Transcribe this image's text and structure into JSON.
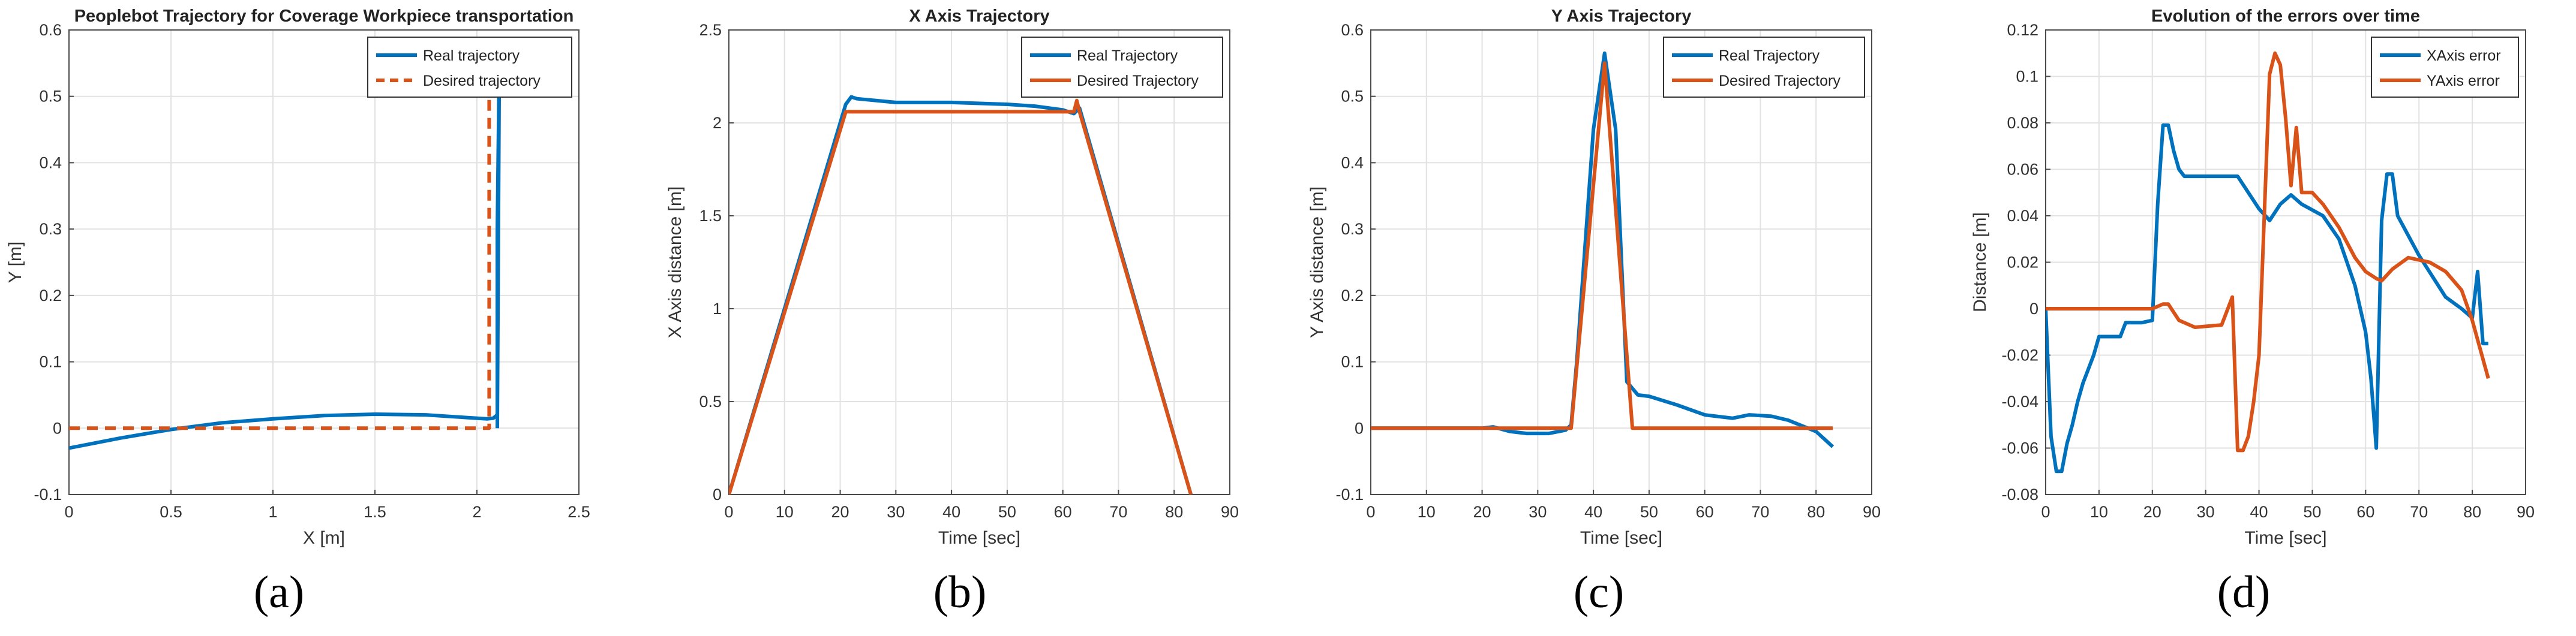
{
  "colors": {
    "real": "#0072BD",
    "desired": "#D95319",
    "grid": "#e2e2e2",
    "axis": "#4a4a4a"
  },
  "panel_labels": [
    "(a)",
    "(b)",
    "(c)",
    "(d)"
  ],
  "chart_data": [
    {
      "type": "line",
      "title": "Peoplebot Trajectory for Coverage Workpiece transportation",
      "xlabel": "X [m]",
      "ylabel": "Y [m]",
      "xlim": [
        0,
        2.5
      ],
      "ylim": [
        -0.1,
        0.6
      ],
      "xticks": [
        0,
        0.5,
        1,
        1.5,
        2,
        2.5
      ],
      "yticks": [
        -0.1,
        0,
        0.1,
        0.2,
        0.3,
        0.4,
        0.5,
        0.6
      ],
      "xtick_labels": [
        "0",
        "0.5",
        "1",
        "1.5",
        "2",
        "2.5"
      ],
      "ytick_labels": [
        "-0.1",
        "0",
        "0.1",
        "0.2",
        "0.3",
        "0.4",
        "0.5",
        "0.6"
      ],
      "legend": "top-right",
      "series": [
        {
          "name": "Real trajectory",
          "style": "solid",
          "x": [
            0,
            0.25,
            0.5,
            0.75,
            1.0,
            1.25,
            1.5,
            1.75,
            1.95,
            2.05,
            2.08,
            2.1,
            2.1,
            2.11,
            2.1
          ],
          "y": [
            -0.03,
            -0.015,
            -0.002,
            0.008,
            0.014,
            0.019,
            0.021,
            0.02,
            0.016,
            0.014,
            0.015,
            0.02,
            0.3,
            0.565,
            0.0
          ]
        },
        {
          "name": "Desired trajectory",
          "style": "dashed",
          "x": [
            0,
            2.06,
            2.06
          ],
          "y": [
            0,
            0,
            0.55
          ]
        }
      ]
    },
    {
      "type": "line",
      "title": "X Axis Trajectory",
      "xlabel": "Time [sec]",
      "ylabel": "X Axis distance [m]",
      "xlim": [
        0,
        90
      ],
      "ylim": [
        0,
        2.5
      ],
      "xticks": [
        0,
        10,
        20,
        30,
        40,
        50,
        60,
        70,
        80,
        90
      ],
      "yticks": [
        0,
        0.5,
        1,
        1.5,
        2,
        2.5
      ],
      "xtick_labels": [
        "0",
        "10",
        "20",
        "30",
        "40",
        "50",
        "60",
        "70",
        "80",
        "90"
      ],
      "ytick_labels": [
        "0",
        "0.5",
        "1",
        "1.5",
        "2",
        "2.5"
      ],
      "legend": "top-right",
      "series": [
        {
          "name": "Real Trajectory",
          "x": [
            0,
            21,
            22,
            23,
            30,
            40,
            50,
            55,
            60,
            62,
            63,
            83
          ],
          "y": [
            0,
            2.1,
            2.14,
            2.13,
            2.11,
            2.11,
            2.1,
            2.09,
            2.07,
            2.05,
            2.08,
            0
          ]
        },
        {
          "name": "Desired Trajectory",
          "x": [
            0,
            21,
            62,
            62.5,
            63,
            83
          ],
          "y": [
            0,
            2.06,
            2.06,
            2.12,
            2.06,
            0
          ]
        }
      ]
    },
    {
      "type": "line",
      "title": "Y Axis Trajectory",
      "xlabel": "Time [sec]",
      "ylabel": "Y Axis distance [m]",
      "xlim": [
        0,
        90
      ],
      "ylim": [
        -0.1,
        0.6
      ],
      "xticks": [
        0,
        10,
        20,
        30,
        40,
        50,
        60,
        70,
        80,
        90
      ],
      "yticks": [
        -0.1,
        0,
        0.1,
        0.2,
        0.3,
        0.4,
        0.5,
        0.6
      ],
      "xtick_labels": [
        "0",
        "10",
        "20",
        "30",
        "40",
        "50",
        "60",
        "70",
        "80",
        "90"
      ],
      "ytick_labels": [
        "-0.1",
        "0",
        "0.1",
        "0.2",
        "0.3",
        "0.4",
        "0.5",
        "0.6"
      ],
      "legend": "top-right",
      "series": [
        {
          "name": "Real Trajectory",
          "x": [
            0,
            20,
            22,
            25,
            28,
            32,
            35,
            36,
            37,
            40,
            42,
            44,
            46,
            48,
            50,
            55,
            60,
            65,
            68,
            72,
            75,
            80,
            83
          ],
          "y": [
            0,
            0,
            0.002,
            -0.005,
            -0.008,
            -0.008,
            -0.003,
            0.005,
            0.1,
            0.45,
            0.565,
            0.45,
            0.07,
            0.05,
            0.048,
            0.035,
            0.02,
            0.015,
            0.02,
            0.018,
            0.012,
            -0.005,
            -0.028
          ]
        },
        {
          "name": "Desired Trajectory",
          "x": [
            0,
            36,
            42,
            47,
            83
          ],
          "y": [
            0,
            0,
            0.55,
            0,
            0
          ]
        }
      ]
    },
    {
      "type": "line",
      "title": "Evolution of the errors over time",
      "xlabel": "Time [sec]",
      "ylabel": "Distance [m]",
      "xlim": [
        0,
        90
      ],
      "ylim": [
        -0.08,
        0.12
      ],
      "xticks": [
        0,
        10,
        20,
        30,
        40,
        50,
        60,
        70,
        80,
        90
      ],
      "yticks": [
        -0.08,
        -0.06,
        -0.04,
        -0.02,
        0,
        0.02,
        0.04,
        0.06,
        0.08,
        0.1,
        0.12
      ],
      "xtick_labels": [
        "0",
        "10",
        "20",
        "30",
        "40",
        "50",
        "60",
        "70",
        "80",
        "90"
      ],
      "ytick_labels": [
        "-0.08",
        "-0.06",
        "-0.04",
        "-0.02",
        "0",
        "0.02",
        "0.04",
        "0.06",
        "0.08",
        "0.1",
        "0.12"
      ],
      "legend": "top-right",
      "series": [
        {
          "name": "XAxis error",
          "x": [
            0,
            1,
            2,
            3,
            4,
            5,
            6,
            7,
            8,
            9,
            10,
            14,
            15,
            18,
            20,
            21,
            22,
            23,
            24,
            25,
            26,
            35,
            36,
            40,
            42,
            44,
            46,
            48,
            52,
            55,
            58,
            60,
            61,
            62,
            63,
            64,
            65,
            66,
            70,
            75,
            78,
            80,
            81,
            82,
            83
          ],
          "y": [
            0,
            -0.055,
            -0.07,
            -0.07,
            -0.058,
            -0.05,
            -0.04,
            -0.032,
            -0.026,
            -0.02,
            -0.012,
            -0.012,
            -0.006,
            -0.006,
            -0.005,
            0.045,
            0.079,
            0.079,
            0.068,
            0.06,
            0.057,
            0.057,
            0.057,
            0.043,
            0.038,
            0.045,
            0.049,
            0.045,
            0.04,
            0.03,
            0.01,
            -0.01,
            -0.03,
            -0.06,
            0.038,
            0.058,
            0.058,
            0.04,
            0.023,
            0.005,
            0,
            -0.004,
            0.016,
            -0.015,
            -0.015
          ]
        },
        {
          "name": "YAxis error",
          "x": [
            0,
            20,
            22,
            23,
            25,
            28,
            33,
            35,
            36,
            37,
            38,
            39,
            40,
            41,
            42,
            43,
            44,
            45,
            46,
            47,
            48,
            50,
            52,
            55,
            58,
            60,
            62,
            63,
            65,
            68,
            72,
            75,
            78,
            80,
            83
          ],
          "y": [
            0,
            0,
            0.002,
            0.002,
            -0.005,
            -0.008,
            -0.007,
            0.005,
            -0.061,
            -0.061,
            -0.055,
            -0.04,
            -0.02,
            0.04,
            0.101,
            0.11,
            0.105,
            0.082,
            0.053,
            0.078,
            0.05,
            0.05,
            0.045,
            0.035,
            0.022,
            0.016,
            0.013,
            0.012,
            0.017,
            0.022,
            0.02,
            0.016,
            0.008,
            -0.005,
            -0.03
          ]
        }
      ]
    }
  ]
}
